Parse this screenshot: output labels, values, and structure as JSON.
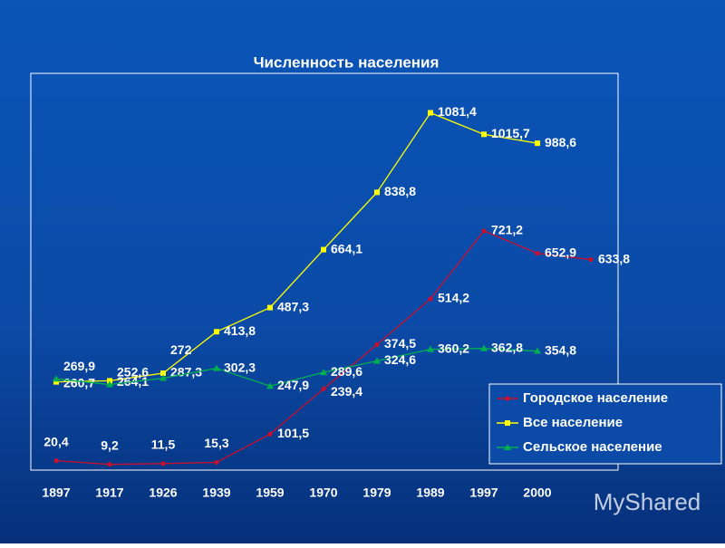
{
  "chart_data": {
    "type": "line",
    "title": "Численность населения",
    "categories": [
      "1897",
      "1917",
      "1926",
      "1939",
      "1959",
      "1970",
      "1979",
      "1989",
      "1997",
      "2000",
      null
    ],
    "series": [
      {
        "name": "Городское население",
        "color": "#c8102e",
        "values": [
          20.4,
          9.2,
          11.5,
          15.3,
          101.5,
          239.4,
          374.5,
          514.2,
          721.2,
          652.9,
          633.8
        ],
        "value_labels": [
          "20,4",
          "9,2",
          "11,5",
          "15,3",
          "101,5",
          "239,4",
          "374,5",
          "514,2",
          "721,2",
          "652,9",
          "633,8"
        ]
      },
      {
        "name": "Все население",
        "color": "#ffff00",
        "values": [
          260.7,
          264.1,
          287.3,
          413.8,
          487.3,
          664.1,
          838.8,
          1081.4,
          1015.7,
          988.6,
          null
        ],
        "value_labels": [
          "260,7",
          "264,1",
          "287,3",
          "413,8",
          "487,3",
          "664,1",
          "838,8",
          "1081,4",
          "1015,7",
          "988,6",
          null
        ]
      },
      {
        "name": "Сельское население",
        "color": "#00b050",
        "values": [
          269.9,
          252.6,
          272,
          302.3,
          247.9,
          289.6,
          324.6,
          360.2,
          362.8,
          354.8,
          null
        ],
        "value_labels": [
          "269,9",
          "252,6",
          "272",
          "302,3",
          "247,9",
          "289,6",
          "324,6",
          "360,2",
          "362,8",
          "354,8",
          null
        ]
      }
    ],
    "legend": "lower right",
    "watermark": "MyShared"
  }
}
